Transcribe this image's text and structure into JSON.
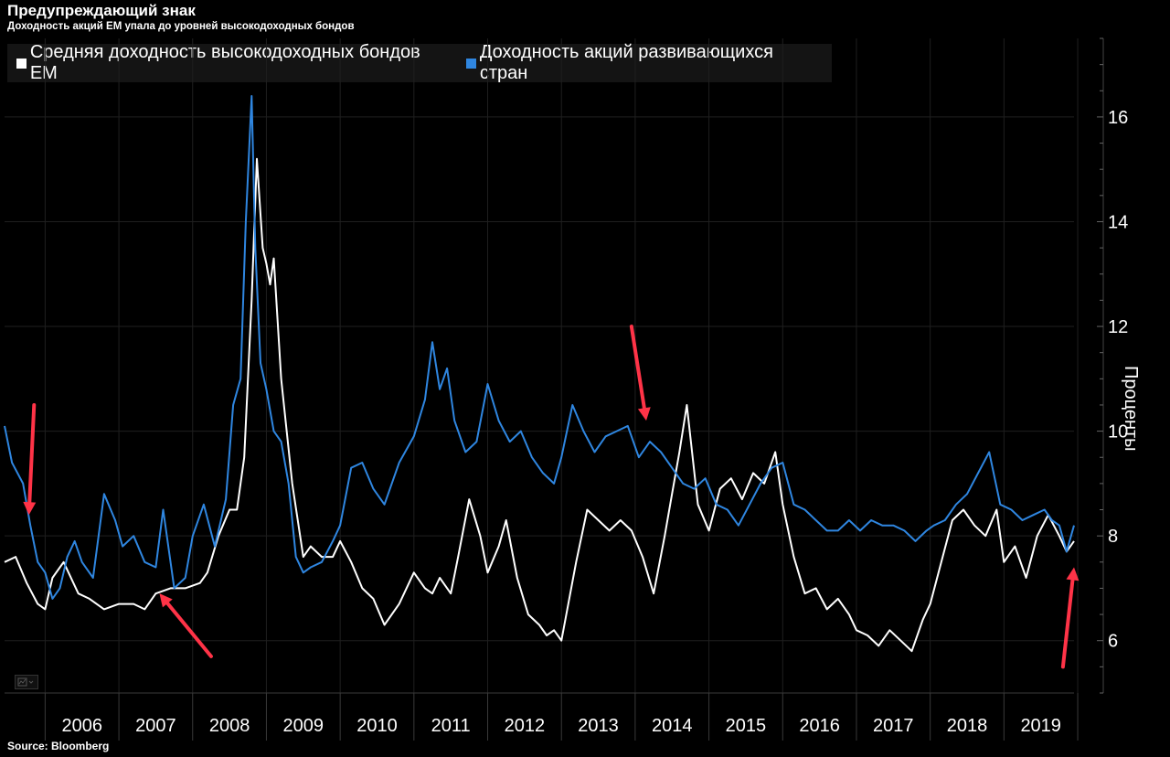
{
  "title": "Предупреждающий знак",
  "subtitle": "Доходность акций EM упала до уровней высокодоходных бондов",
  "source": "Source: Bloomberg",
  "colors": {
    "background": "#000000",
    "hy_bonds": "#ffffff",
    "em_equity": "#2f86e0",
    "arrow": "#ff3347",
    "grid": "#1f1f1f"
  },
  "icons": {
    "chart_tool": "chart-settings-icon"
  },
  "chart_data": {
    "type": "line",
    "title": "Предупреждающий знак",
    "subtitle": "Доходность акций EM упала до уровней высокодоходных бондов",
    "ylabel": "Проценты",
    "y_axis_side": "right",
    "ylim": [
      5,
      17.5
    ],
    "yticks": [
      6,
      8,
      10,
      12,
      14,
      16
    ],
    "x_range": [
      2005.45,
      2019.95
    ],
    "x_year_labels": [
      "2006",
      "2007",
      "2008",
      "2009",
      "2010",
      "2011",
      "2012",
      "2013",
      "2014",
      "2015",
      "2016",
      "2017",
      "2018",
      "2019"
    ],
    "legend": "top-left",
    "grid": true,
    "series": [
      {
        "name": "Средняя доходность высокодоходных бондов EM",
        "color": "#ffffff",
        "x": [
          2005.45,
          2005.6,
          2005.75,
          2005.9,
          2006.0,
          2006.1,
          2006.25,
          2006.45,
          2006.6,
          2006.8,
          2007.0,
          2007.2,
          2007.35,
          2007.5,
          2007.7,
          2007.9,
          2008.1,
          2008.2,
          2008.35,
          2008.5,
          2008.6,
          2008.7,
          2008.8,
          2008.87,
          2008.95,
          2009.0,
          2009.05,
          2009.1,
          2009.2,
          2009.35,
          2009.5,
          2009.6,
          2009.75,
          2009.9,
          2010.0,
          2010.15,
          2010.3,
          2010.45,
          2010.6,
          2010.8,
          2011.0,
          2011.15,
          2011.25,
          2011.35,
          2011.5,
          2011.6,
          2011.75,
          2011.9,
          2012.0,
          2012.15,
          2012.25,
          2012.4,
          2012.55,
          2012.7,
          2012.8,
          2012.9,
          2013.0,
          2013.2,
          2013.35,
          2013.5,
          2013.65,
          2013.8,
          2013.95,
          2014.1,
          2014.25,
          2014.4,
          2014.5,
          2014.6,
          2014.7,
          2014.85,
          2015.0,
          2015.15,
          2015.3,
          2015.45,
          2015.6,
          2015.75,
          2015.9,
          2016.0,
          2016.15,
          2016.3,
          2016.45,
          2016.6,
          2016.75,
          2016.9,
          2017.0,
          2017.15,
          2017.3,
          2017.45,
          2017.6,
          2017.75,
          2017.9,
          2018.0,
          2018.15,
          2018.3,
          2018.45,
          2018.6,
          2018.75,
          2018.9,
          2019.0,
          2019.15,
          2019.3,
          2019.45,
          2019.6,
          2019.75,
          2019.85,
          2019.95
        ],
        "y": [
          7.5,
          7.6,
          7.1,
          6.7,
          6.6,
          7.2,
          7.5,
          6.9,
          6.8,
          6.6,
          6.7,
          6.7,
          6.6,
          6.9,
          7.0,
          7.0,
          7.1,
          7.3,
          8.0,
          8.5,
          8.5,
          9.5,
          12.5,
          15.2,
          13.5,
          13.2,
          12.8,
          13.3,
          11.0,
          9.0,
          7.6,
          7.8,
          7.6,
          7.6,
          7.9,
          7.5,
          7.0,
          6.8,
          6.3,
          6.7,
          7.3,
          7.0,
          6.9,
          7.2,
          6.9,
          7.6,
          8.7,
          8.0,
          7.3,
          7.8,
          8.3,
          7.2,
          6.5,
          6.3,
          6.1,
          6.2,
          6.0,
          7.5,
          8.5,
          8.3,
          8.1,
          8.3,
          8.1,
          7.6,
          6.9,
          8.0,
          8.8,
          9.6,
          10.5,
          8.6,
          8.1,
          8.9,
          9.1,
          8.7,
          9.2,
          9.0,
          9.6,
          8.6,
          7.6,
          6.9,
          7.0,
          6.6,
          6.8,
          6.5,
          6.2,
          6.1,
          5.9,
          6.2,
          6.0,
          5.8,
          6.4,
          6.7,
          7.5,
          8.3,
          8.5,
          8.2,
          8.0,
          8.5,
          7.5,
          7.8,
          7.2,
          8.0,
          8.4,
          8.0,
          7.7,
          7.9
        ]
      },
      {
        "name": "Доходность акций развивающихся стран",
        "color": "#2f86e0",
        "x": [
          2005.45,
          2005.55,
          2005.7,
          2005.8,
          2005.9,
          2006.0,
          2006.1,
          2006.2,
          2006.3,
          2006.4,
          2006.5,
          2006.65,
          2006.8,
          2006.95,
          2007.05,
          2007.2,
          2007.35,
          2007.5,
          2007.6,
          2007.75,
          2007.9,
          2008.0,
          2008.15,
          2008.3,
          2008.45,
          2008.55,
          2008.65,
          2008.72,
          2008.8,
          2008.85,
          2008.92,
          2009.0,
          2009.1,
          2009.2,
          2009.3,
          2009.4,
          2009.5,
          2009.6,
          2009.75,
          2009.9,
          2010.0,
          2010.15,
          2010.3,
          2010.45,
          2010.6,
          2010.8,
          2011.0,
          2011.15,
          2011.25,
          2011.35,
          2011.45,
          2011.55,
          2011.7,
          2011.85,
          2012.0,
          2012.15,
          2012.3,
          2012.45,
          2012.6,
          2012.75,
          2012.9,
          2013.0,
          2013.15,
          2013.3,
          2013.45,
          2013.6,
          2013.75,
          2013.9,
          2014.05,
          2014.2,
          2014.35,
          2014.5,
          2014.65,
          2014.8,
          2014.95,
          2015.1,
          2015.25,
          2015.4,
          2015.55,
          2015.7,
          2015.85,
          2016.0,
          2016.15,
          2016.3,
          2016.45,
          2016.6,
          2016.75,
          2016.9,
          2017.05,
          2017.2,
          2017.35,
          2017.5,
          2017.65,
          2017.8,
          2017.95,
          2018.05,
          2018.2,
          2018.35,
          2018.5,
          2018.65,
          2018.8,
          2018.95,
          2019.1,
          2019.25,
          2019.4,
          2019.55,
          2019.65,
          2019.75,
          2019.85,
          2019.95
        ],
        "y": [
          10.1,
          9.4,
          9.0,
          8.2,
          7.5,
          7.3,
          6.8,
          7.0,
          7.6,
          7.9,
          7.5,
          7.2,
          8.8,
          8.3,
          7.8,
          8.0,
          7.5,
          7.4,
          8.5,
          7.0,
          7.2,
          8.0,
          8.6,
          7.8,
          8.7,
          10.5,
          11.0,
          14.0,
          16.4,
          13.5,
          11.3,
          10.8,
          10.0,
          9.8,
          9.0,
          7.6,
          7.3,
          7.4,
          7.5,
          7.9,
          8.2,
          9.3,
          9.4,
          8.9,
          8.6,
          9.4,
          9.9,
          10.6,
          11.7,
          10.8,
          11.2,
          10.2,
          9.6,
          9.8,
          10.9,
          10.2,
          9.8,
          10.0,
          9.5,
          9.2,
          9.0,
          9.5,
          10.5,
          10.0,
          9.6,
          9.9,
          10.0,
          10.1,
          9.5,
          9.8,
          9.6,
          9.3,
          9.0,
          8.9,
          9.1,
          8.6,
          8.5,
          8.2,
          8.6,
          9.0,
          9.3,
          9.4,
          8.6,
          8.5,
          8.3,
          8.1,
          8.1,
          8.3,
          8.1,
          8.3,
          8.2,
          8.2,
          8.1,
          7.9,
          8.1,
          8.2,
          8.3,
          8.6,
          8.8,
          9.2,
          9.6,
          8.6,
          8.5,
          8.3,
          8.4,
          8.5,
          8.3,
          8.2,
          7.7,
          8.2
        ]
      }
    ],
    "annotations": [
      {
        "type": "arrow",
        "from": [
          2005.85,
          10.5
        ],
        "to": [
          2005.78,
          8.4
        ]
      },
      {
        "type": "arrow",
        "from": [
          2008.25,
          5.7
        ],
        "to": [
          2007.55,
          6.9
        ]
      },
      {
        "type": "arrow",
        "from": [
          2013.95,
          12.0
        ],
        "to": [
          2014.15,
          10.2
        ]
      },
      {
        "type": "arrow",
        "from": [
          2019.8,
          5.5
        ],
        "to": [
          2019.95,
          7.4
        ]
      }
    ]
  }
}
